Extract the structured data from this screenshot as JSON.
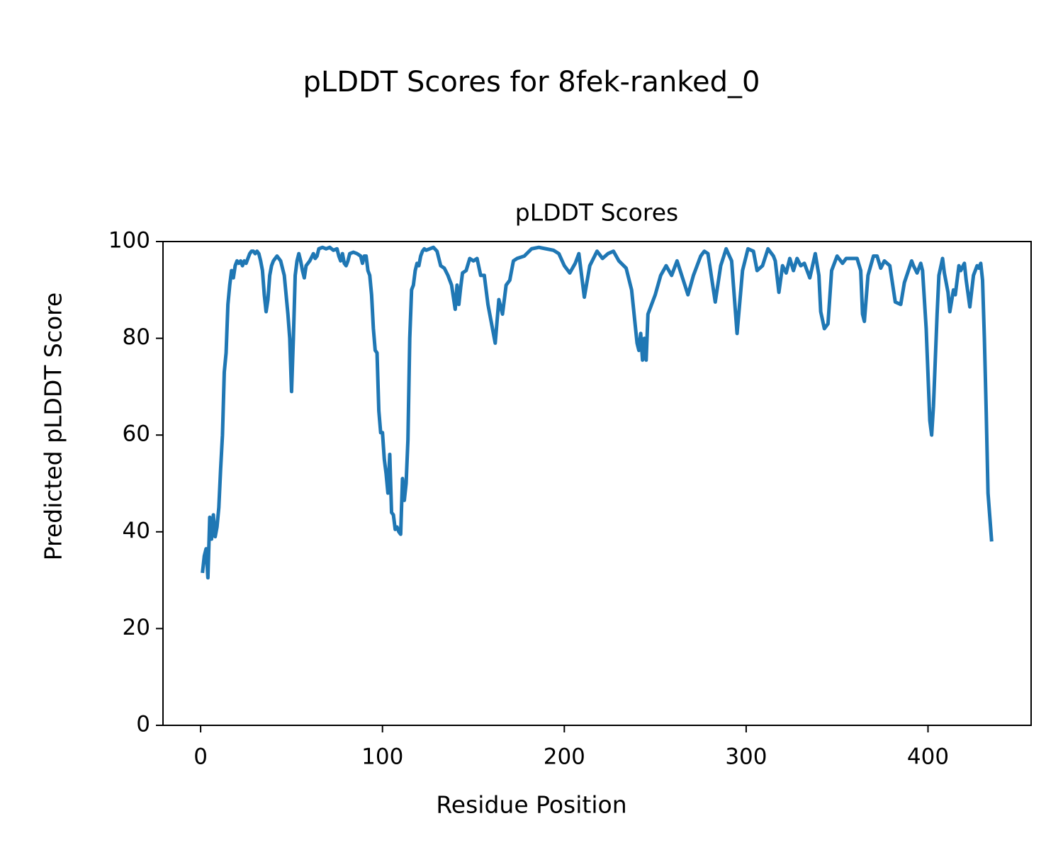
{
  "chart_data": {
    "type": "line",
    "title": "pLDDT Scores for 8fek-ranked_0",
    "subtitle": "pLDDT Scores",
    "x_label": "Residue Position",
    "y_label": "Predicted pLDDT Score",
    "color": "#1f77b4",
    "grid": false,
    "xlim": [
      -20.7,
      456.7
    ],
    "ylim": [
      0,
      100
    ],
    "xticks": [
      0,
      100,
      200,
      300,
      400
    ],
    "yticks": [
      0,
      20,
      40,
      60,
      80,
      100
    ],
    "x": [
      1,
      2,
      3,
      4,
      5,
      6,
      7,
      8,
      9,
      10,
      11,
      12,
      13,
      14,
      15,
      16,
      17,
      18,
      19,
      20,
      21,
      22,
      23,
      24,
      25,
      26,
      27,
      28,
      29,
      30,
      31,
      32,
      33,
      34,
      35,
      36,
      37,
      38,
      39,
      40,
      41,
      42,
      43,
      44,
      46,
      48,
      49,
      50,
      51,
      52,
      53,
      54,
      55,
      56,
      57,
      58,
      59,
      60,
      62,
      63,
      64,
      65,
      67,
      69,
      71,
      73,
      75,
      76,
      77,
      78,
      79,
      80,
      81,
      82,
      84,
      86,
      88,
      89,
      90,
      91,
      92,
      93,
      94,
      95,
      96,
      97,
      98,
      99,
      100,
      101,
      102,
      103,
      104,
      105,
      106,
      107,
      108,
      109,
      110,
      111,
      112,
      113,
      114,
      115,
      116,
      117,
      118,
      119,
      120,
      121,
      122,
      123,
      124,
      126,
      128,
      130,
      132,
      134,
      136,
      138,
      140,
      141,
      142,
      143,
      144,
      146,
      148,
      150,
      152,
      154,
      156,
      158,
      160,
      162,
      164,
      166,
      168,
      170,
      172,
      174,
      178,
      182,
      186,
      190,
      194,
      197,
      200,
      203,
      206,
      208,
      211,
      214,
      218,
      221,
      224,
      227,
      230,
      234,
      237,
      240,
      241,
      242,
      243,
      244,
      245,
      246,
      248,
      250,
      253,
      256,
      259,
      262,
      265,
      268,
      271,
      275,
      277,
      279,
      283,
      286,
      289,
      292,
      295,
      298,
      301,
      304,
      306,
      309,
      312,
      315,
      316,
      318,
      320,
      322,
      324,
      326,
      328,
      330,
      332,
      335,
      338,
      340,
      341,
      343,
      345,
      347,
      350,
      353,
      355,
      359,
      361,
      363,
      364,
      365,
      367,
      370,
      372,
      374,
      376,
      379,
      382,
      385,
      387,
      391,
      392,
      394,
      396,
      397,
      398,
      399,
      401,
      402,
      403,
      405,
      406,
      408,
      409,
      411,
      412,
      414,
      415,
      417,
      418,
      420,
      421,
      423,
      425,
      427,
      428,
      429,
      430,
      431,
      432,
      433,
      435
    ],
    "values": [
      31.5,
      35,
      36.5,
      30.5,
      43,
      38.5,
      43.5,
      39,
      41,
      45,
      53,
      60,
      73,
      77,
      87,
      91,
      94,
      92.5,
      95,
      96,
      95.5,
      96,
      95,
      96,
      95.5,
      96.5,
      97.5,
      98,
      98,
      97.5,
      98,
      97.5,
      96,
      94,
      89,
      85.5,
      88,
      93,
      95,
      96,
      96.5,
      97,
      96.5,
      96,
      93,
      85,
      80,
      69,
      80,
      93,
      96,
      97.5,
      96,
      94,
      92.5,
      95,
      95.5,
      96,
      97.5,
      96.5,
      97,
      98.5,
      98.8,
      98.5,
      98.8,
      98.2,
      98.5,
      97,
      96,
      97.5,
      95.5,
      95,
      96,
      97.5,
      97.8,
      97.5,
      97,
      95.5,
      97,
      97,
      94,
      93,
      89,
      82,
      77.5,
      77,
      65,
      60.5,
      60.5,
      55,
      52,
      48,
      56,
      44,
      43.5,
      40.5,
      41,
      40,
      39.5,
      51,
      46.5,
      50,
      59,
      80,
      90,
      91,
      94,
      95.5,
      95,
      97,
      98,
      98.5,
      98.2,
      98.5,
      98.8,
      98,
      95,
      94.5,
      93,
      91,
      86,
      91,
      87,
      90.5,
      93.5,
      94,
      96.5,
      96,
      96.5,
      93,
      93,
      87,
      83,
      79,
      88,
      85,
      91,
      92,
      96,
      96.5,
      97,
      98.5,
      98.8,
      98.5,
      98.2,
      97.5,
      95,
      93.5,
      95.5,
      97.5,
      88.5,
      95,
      98,
      96.5,
      97.5,
      98,
      96,
      94.5,
      90,
      79,
      77.5,
      81,
      75.5,
      80,
      75.5,
      85,
      87,
      89,
      93,
      95,
      93,
      96,
      92.5,
      89,
      93,
      97,
      98,
      97.5,
      87.5,
      95,
      98.5,
      96,
      81,
      94,
      98.5,
      98,
      94,
      95,
      98.5,
      97,
      96,
      89.5,
      95,
      93.5,
      96.5,
      94,
      96.5,
      95,
      95.5,
      92.5,
      97.5,
      93,
      85.5,
      82,
      83,
      94,
      97,
      95.5,
      96.5,
      96.5,
      96.5,
      94,
      85,
      83.5,
      93,
      97,
      97,
      94.5,
      96,
      95,
      87.5,
      87,
      91.5,
      96,
      95,
      93.5,
      95.5,
      94,
      88,
      82,
      63,
      60,
      66,
      85,
      93,
      96.5,
      93.5,
      89.5,
      85.5,
      90,
      89,
      95,
      94,
      95.5,
      92,
      86.5,
      93,
      95,
      94.5,
      95.5,
      92,
      80,
      65,
      48,
      38
    ]
  }
}
